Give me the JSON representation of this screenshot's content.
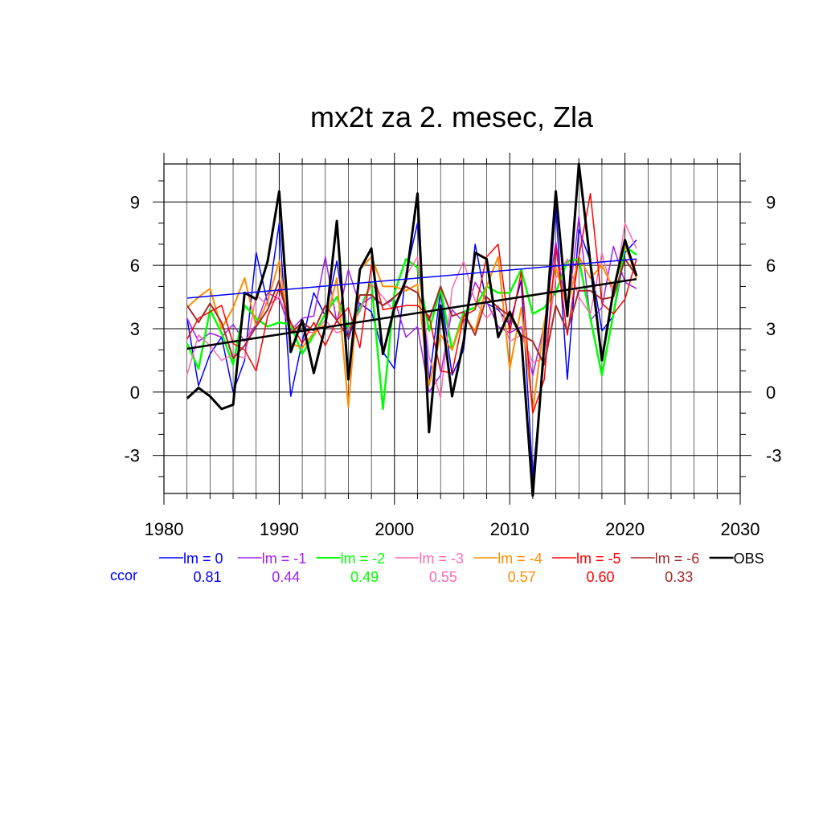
{
  "chart_data": {
    "type": "line",
    "title": "mx2t za 2. mesec, Zla",
    "xlabel": "",
    "ylabel": "",
    "xlim": [
      1980,
      2030
    ],
    "ylim": [
      -4.8,
      10.8
    ],
    "x_ticks": [
      1980,
      1990,
      2000,
      2010,
      2020,
      2030
    ],
    "x_tick_labels": [
      "1980",
      "1990",
      "2000",
      "2010",
      "2020",
      "2030"
    ],
    "y_ticks": [
      -3,
      0,
      3,
      6,
      9
    ],
    "y_tick_labels": [
      "-3",
      "0",
      "3",
      "6",
      "9"
    ],
    "grid": true,
    "legend_position": "bottom",
    "ccor_label": "ccor",
    "x": [
      1982,
      1983,
      1984,
      1985,
      1986,
      1987,
      1988,
      1989,
      1990,
      1991,
      1992,
      1993,
      1994,
      1995,
      1996,
      1997,
      1998,
      1999,
      2000,
      2001,
      2002,
      2003,
      2004,
      2005,
      2006,
      2007,
      2008,
      2009,
      2010,
      2011,
      2012,
      2013,
      2014,
      2015,
      2016,
      2017,
      2018,
      2019,
      2020,
      2021
    ],
    "series": [
      {
        "name": "lm = 0",
        "color": "#0000ff",
        "width": 1.5,
        "ccor": "0.81",
        "values": [
          3.5,
          0.3,
          1.8,
          2.6,
          0.0,
          1.5,
          6.6,
          4.2,
          8.0,
          -0.2,
          2.4,
          4.7,
          3.6,
          6.2,
          2.5,
          4.2,
          3.8,
          1.9,
          1.1,
          5.6,
          8.0,
          0.5,
          4.8,
          0.8,
          2.0,
          7.0,
          4.2,
          3.9,
          3.2,
          5.3,
          -4.0,
          1.7,
          8.7,
          0.6,
          7.7,
          6.2,
          2.9,
          3.6,
          6.6,
          7.2
        ],
        "trend": [
          4.45,
          6.3
        ]
      },
      {
        "name": "lm = -1",
        "color": "#a020f0",
        "width": 1.5,
        "ccor": "0.44",
        "values": [
          3.5,
          2.4,
          2.8,
          2.6,
          3.2,
          2.4,
          3.2,
          4.7,
          4.4,
          2.9,
          3.5,
          3.6,
          6.4,
          3.3,
          5.8,
          4.1,
          4.5,
          4.1,
          4.4,
          2.6,
          3.1,
          0.0,
          0.8,
          3.9,
          3.3,
          5.2,
          4.3,
          3.1,
          2.8,
          3.1,
          0.8,
          3.2,
          7.1,
          3.6,
          8.3,
          3.4,
          4.0,
          6.9,
          5.2,
          4.9
        ]
      },
      {
        "name": "lm = -2",
        "color": "#00ff00",
        "width": 2.5,
        "ccor": "0.49",
        "values": [
          2.3,
          1.1,
          3.9,
          2.8,
          1.3,
          4.1,
          3.5,
          3.1,
          3.3,
          3.2,
          1.8,
          2.7,
          3.7,
          4.5,
          3.0,
          3.9,
          5.2,
          -0.8,
          4.7,
          6.3,
          5.9,
          2.9,
          4.9,
          2.0,
          3.8,
          4.0,
          5.0,
          4.7,
          4.7,
          5.8,
          3.7,
          4.0,
          4.7,
          6.2,
          6.3,
          3.5,
          0.8,
          3.7,
          6.9,
          6.5
        ]
      },
      {
        "name": "lm = -3",
        "color": "#ff69b4",
        "width": 1.5,
        "ccor": "0.55",
        "values": [
          0.8,
          2.7,
          2.2,
          1.5,
          1.8,
          1.6,
          4.6,
          4.1,
          4.5,
          3.2,
          2.9,
          2.8,
          3.4,
          2.8,
          3.0,
          3.8,
          5.1,
          4.5,
          3.8,
          5.5,
          6.4,
          1.7,
          -0.3,
          4.9,
          6.2,
          4.3,
          3.5,
          4.1,
          2.4,
          2.7,
          1.4,
          1.6,
          5.4,
          6.3,
          4.5,
          3.7,
          6.6,
          4.5,
          8.0,
          6.8
        ]
      },
      {
        "name": "lm = -4",
        "color": "#ff8c00",
        "width": 2.0,
        "ccor": "0.57",
        "values": [
          4.0,
          4.5,
          4.9,
          3.0,
          4.0,
          5.4,
          3.1,
          4.3,
          6.2,
          2.3,
          2.1,
          2.8,
          3.2,
          5.4,
          -0.7,
          5.8,
          6.4,
          5.0,
          5.0,
          4.8,
          5.1,
          0.3,
          2.7,
          2.0,
          3.6,
          2.9,
          5.0,
          6.4,
          1.1,
          4.0,
          -0.9,
          3.3,
          5.9,
          4.0,
          6.4,
          5.4,
          6.0,
          4.9,
          7.0,
          5.4
        ]
      },
      {
        "name": "lm = -5",
        "color": "#ff0000",
        "width": 1.5,
        "ccor": "0.60",
        "values": [
          2.5,
          3.5,
          3.8,
          4.1,
          2.3,
          2.0,
          1.0,
          3.6,
          4.9,
          3.3,
          2.3,
          3.3,
          2.2,
          3.4,
          4.0,
          2.1,
          6.0,
          3.9,
          4.0,
          4.1,
          4.1,
          3.6,
          1.0,
          0.9,
          3.6,
          3.9,
          6.4,
          7.0,
          2.8,
          5.7,
          -1.0,
          0.6,
          6.9,
          2.7,
          6.4,
          9.4,
          4.2,
          3.7,
          4.4,
          6.3
        ]
      },
      {
        "name": "lm = -6",
        "color": "#a52a2a",
        "width": 2.0,
        "ccor": "0.33",
        "values": [
          4.1,
          3.3,
          4.2,
          3.3,
          1.6,
          2.2,
          3.1,
          3.9,
          5.3,
          2.8,
          3.3,
          2.9,
          4.1,
          3.4,
          2.6,
          4.6,
          4.6,
          4.1,
          4.5,
          5.0,
          4.7,
          3.4,
          5.0,
          3.6,
          3.8,
          2.7,
          4.5,
          4.0,
          3.6,
          2.7,
          2.4,
          1.3,
          4.1,
          2.9,
          4.8,
          4.8,
          4.4,
          4.5,
          6.3,
          5.5
        ]
      },
      {
        "name": "OBS",
        "color": "#000000",
        "width": 3.0,
        "ccor": "",
        "values": [
          -0.3,
          0.2,
          -0.2,
          -0.8,
          -0.6,
          4.7,
          4.4,
          6.2,
          9.5,
          1.9,
          3.4,
          0.9,
          3.1,
          8.1,
          0.6,
          5.8,
          6.8,
          1.8,
          4.0,
          5.3,
          9.4,
          -1.9,
          4.1,
          -0.2,
          2.4,
          6.6,
          6.3,
          2.6,
          3.8,
          2.6,
          -4.9,
          2.3,
          9.5,
          3.6,
          10.8,
          6.1,
          1.5,
          4.8,
          7.2,
          5.5
        ],
        "trend": [
          2.05,
          5.35
        ]
      }
    ]
  }
}
